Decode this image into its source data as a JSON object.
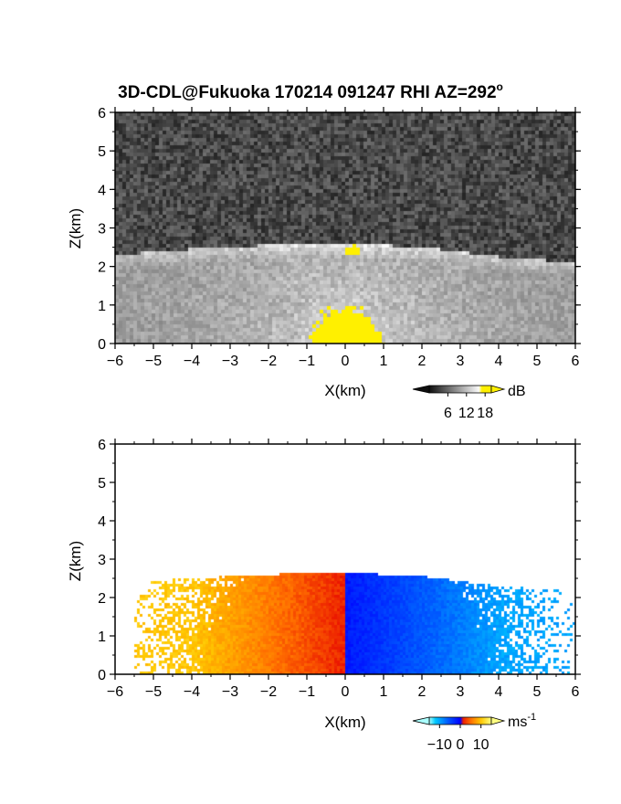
{
  "title": "3D-CDL@Fukuoka 170214 091247 RHI AZ=292",
  "title_superscript": "o",
  "chart_data": [
    {
      "type": "heatmap",
      "variable": "intensity",
      "xlabel": "X(km)",
      "ylabel": "Z(km)",
      "xlim": [
        -6,
        6
      ],
      "ylim": [
        0,
        6
      ],
      "xticks": [
        "-6",
        "-5",
        "-4",
        "-3",
        "-2",
        "-1",
        "0",
        "1",
        "2",
        "3",
        "4",
        "5",
        "6"
      ],
      "yticks": [
        "0",
        "1",
        "2",
        "3",
        "4",
        "5",
        "6"
      ],
      "colorbar": {
        "unit": "dB",
        "ticks": [
          "6",
          "12",
          "18"
        ],
        "range": [
          0,
          20
        ],
        "colormap": "grayscale",
        "colors": [
          "#000000",
          "#ffffff",
          "#ffff00"
        ]
      },
      "features": {
        "noise_level_db": 4,
        "aerosol_layer_top_km": [
          [
            -6,
            2.3
          ],
          [
            -4,
            2.45
          ],
          [
            -2,
            2.55
          ],
          [
            0,
            2.6
          ],
          [
            2,
            2.5
          ],
          [
            4,
            2.25
          ],
          [
            6,
            2.1
          ]
        ],
        "bright_near_range_km": 0.8,
        "cloud_patch": {
          "x": 0.2,
          "z": 2.4
        }
      }
    },
    {
      "type": "heatmap",
      "variable": "radial velocity",
      "xlabel": "X(km)",
      "ylabel": "Z(km)",
      "xlim": [
        -6,
        6
      ],
      "ylim": [
        0,
        6
      ],
      "xticks": [
        "-6",
        "-5",
        "-4",
        "-3",
        "-2",
        "-1",
        "0",
        "1",
        "2",
        "3",
        "4",
        "5",
        "6"
      ],
      "yticks": [
        "0",
        "1",
        "2",
        "3",
        "4",
        "5",
        "6"
      ],
      "colorbar": {
        "unit": "ms",
        "unit_superscript": "-1",
        "ticks": [
          "-10",
          "0",
          "10"
        ],
        "range": [
          -15,
          15
        ],
        "colormap": "cyan-blue-red-yellow",
        "colors": [
          "#00ffff",
          "#0000ff",
          "#ff0000",
          "#ffff00"
        ]
      },
      "features": {
        "left_side_velocity": 10,
        "right_side_velocity": -10,
        "data_extent_left_km": -5.5,
        "data_extent_right_km": 6
      }
    }
  ]
}
